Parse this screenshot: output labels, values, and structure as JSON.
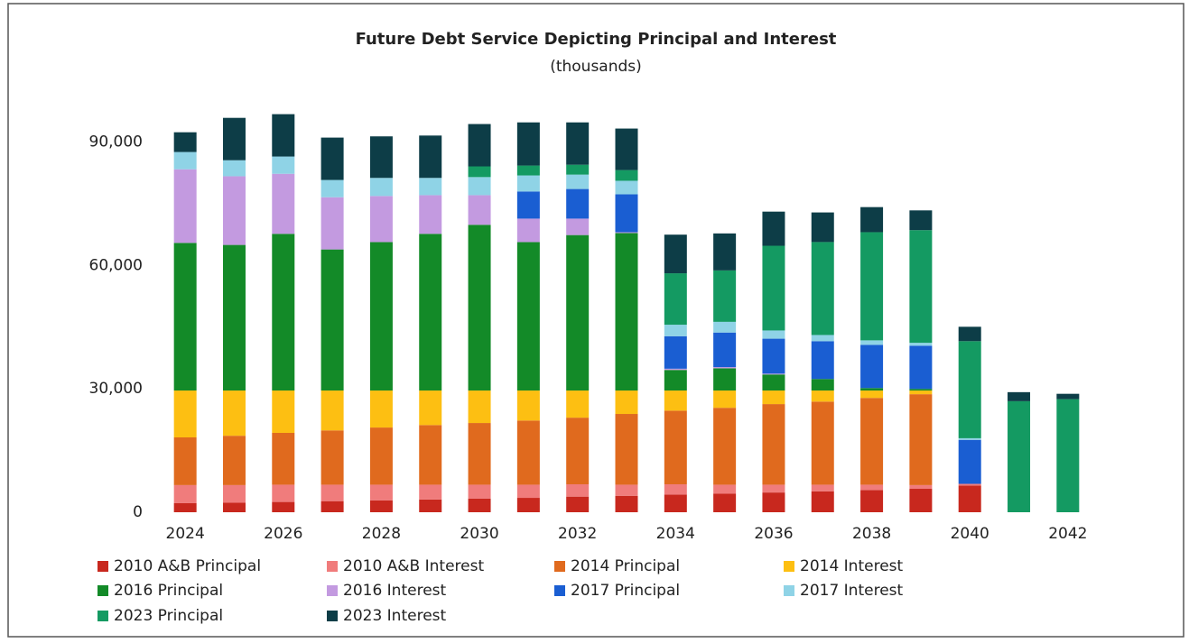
{
  "chart_data": {
    "type": "stacked-bar",
    "title": "Future Debt Service Depicting Principal and Interest",
    "subtitle": "(thousands)",
    "categories": [
      "2024",
      null,
      "2026",
      null,
      "2028",
      null,
      "2030",
      null,
      "2032",
      null,
      "2034",
      null,
      "2036",
      null,
      "2038",
      null,
      "2040",
      null,
      "2042"
    ],
    "ylim": [
      0,
      100000
    ],
    "yticks": [
      0,
      {
        "value": 30000,
        "label": "30,000"
      },
      {
        "value": 60000,
        "label": "60,000"
      },
      {
        "value": 90000,
        "label": "90,000"
      }
    ],
    "grid": false,
    "legend": "bottom",
    "series": [
      {
        "name": "2010 A&B Principal",
        "color": "#c8281e",
        "values": [
          2200,
          2300,
          2500,
          2700,
          2900,
          3100,
          3300,
          3500,
          3800,
          4000,
          4300,
          4500,
          4800,
          5100,
          5400,
          5700,
          6500,
          0,
          0
        ]
      },
      {
        "name": "2010 A&B Interest",
        "color": "#f07c7c",
        "values": [
          4400,
          4300,
          4200,
          4000,
          3800,
          3600,
          3400,
          3200,
          3000,
          2700,
          2500,
          2200,
          1900,
          1600,
          1300,
          900,
          400,
          0,
          0
        ]
      },
      {
        "name": "2014 Principal",
        "color": "#e06a1e",
        "values": [
          11600,
          12000,
          12600,
          13200,
          13900,
          14500,
          15000,
          15600,
          16200,
          17200,
          17900,
          18700,
          19600,
          20200,
          21100,
          22100,
          0,
          0,
          0
        ]
      },
      {
        "name": "2014 Interest",
        "color": "#fdbf12",
        "values": [
          11400,
          11000,
          10300,
          9700,
          9000,
          8400,
          7900,
          7300,
          6600,
          5700,
          4900,
          4200,
          3300,
          2700,
          1800,
          900,
          0,
          0,
          0
        ]
      },
      {
        "name": "2016 Principal",
        "color": "#138a28",
        "values": [
          35900,
          35400,
          38100,
          34300,
          36100,
          38100,
          40300,
          36100,
          37800,
          38300,
          5000,
          5400,
          3900,
          2800,
          600,
          400,
          0,
          0,
          0
        ]
      },
      {
        "name": "2016 Interest",
        "color": "#c39ae0",
        "values": [
          17900,
          16700,
          14600,
          12700,
          11200,
          9400,
          7200,
          5700,
          4000,
          200,
          300,
          300,
          200,
          0,
          0,
          0,
          0,
          0,
          0
        ]
      },
      {
        "name": "2017 Principal",
        "color": "#1a5ed2",
        "values": [
          0,
          0,
          0,
          0,
          0,
          0,
          0,
          6600,
          7200,
          9200,
          7900,
          8400,
          8500,
          9200,
          10500,
          10500,
          10700,
          0,
          0
        ]
      },
      {
        "name": "2017 Interest",
        "color": "#8fd3e6",
        "values": [
          4200,
          3900,
          4200,
          4200,
          4400,
          4200,
          4400,
          3900,
          3500,
          3300,
          2800,
          2600,
          2000,
          1500,
          1100,
          700,
          400,
          0,
          0
        ]
      },
      {
        "name": "2023 Principal",
        "color": "#149a62",
        "values": [
          0,
          0,
          0,
          0,
          0,
          0,
          2600,
          2400,
          2400,
          2600,
          12500,
          12500,
          20600,
          22600,
          26300,
          27400,
          23600,
          27000,
          27500
        ]
      },
      {
        "name": "2023 Interest",
        "color": "#0d3d47",
        "values": [
          4800,
          10300,
          10300,
          10300,
          10100,
          10300,
          10300,
          10500,
          10300,
          10100,
          9400,
          9000,
          8300,
          7200,
          6100,
          4800,
          3500,
          2200,
          1300
        ]
      }
    ]
  }
}
